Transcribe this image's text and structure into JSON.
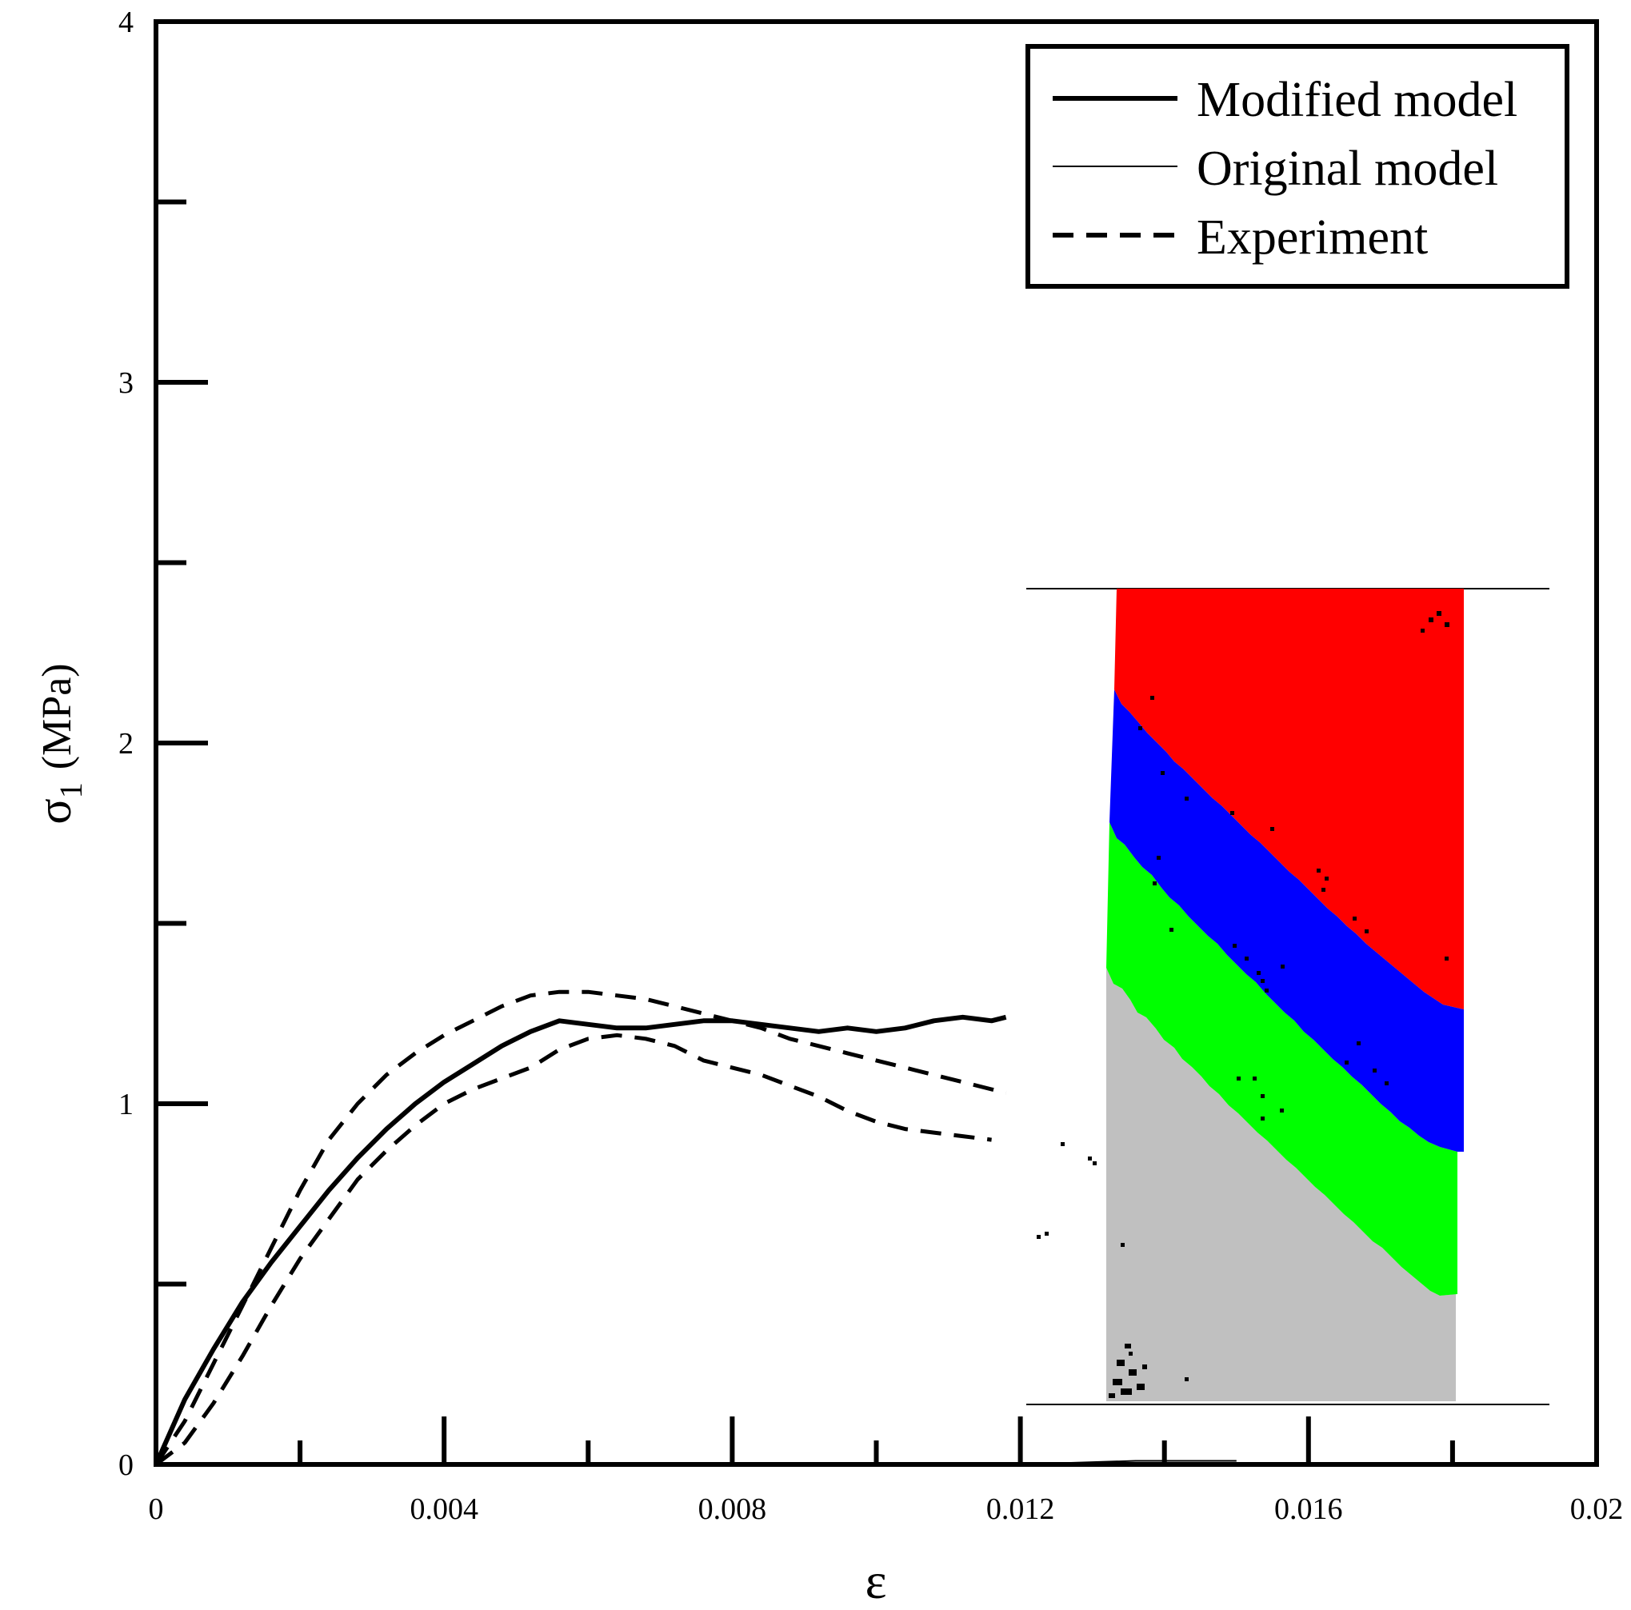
{
  "chart_data": {
    "type": "line",
    "title": "",
    "xlabel": "ε",
    "ylabel": "σ",
    "ylabel_subscript": "1",
    "ylabel_unit": "(MPa)",
    "xlim": [
      0,
      0.02
    ],
    "ylim": [
      0,
      4
    ],
    "x_ticks": [
      0,
      0.004,
      0.008,
      0.012,
      0.016,
      0.02
    ],
    "x_tick_labels": [
      "0",
      "0.004",
      "0.008",
      "0.012",
      "0.016",
      "0.02"
    ],
    "y_ticks": [
      0,
      1,
      2,
      3,
      4
    ],
    "y_tick_labels": [
      "0",
      "1",
      "2",
      "3",
      "4"
    ],
    "grid": false,
    "legend_position": "top-right",
    "series": [
      {
        "name": "Modified model",
        "style": "solid-thick",
        "points": [
          [
            0,
            0
          ],
          [
            0.0004,
            0.18
          ],
          [
            0.0008,
            0.32
          ],
          [
            0.0012,
            0.45
          ],
          [
            0.0016,
            0.56
          ],
          [
            0.002,
            0.66
          ],
          [
            0.0024,
            0.76
          ],
          [
            0.0028,
            0.85
          ],
          [
            0.0032,
            0.93
          ],
          [
            0.0036,
            1.0
          ],
          [
            0.004,
            1.06
          ],
          [
            0.0044,
            1.11
          ],
          [
            0.0048,
            1.16
          ],
          [
            0.0052,
            1.2
          ],
          [
            0.0056,
            1.23
          ],
          [
            0.006,
            1.22
          ],
          [
            0.0064,
            1.21
          ],
          [
            0.0068,
            1.21
          ],
          [
            0.0072,
            1.22
          ],
          [
            0.0076,
            1.23
          ],
          [
            0.008,
            1.23
          ],
          [
            0.0084,
            1.22
          ],
          [
            0.0088,
            1.21
          ],
          [
            0.0092,
            1.2
          ],
          [
            0.0096,
            1.21
          ],
          [
            0.01,
            1.2
          ],
          [
            0.0104,
            1.21
          ],
          [
            0.0108,
            1.23
          ],
          [
            0.0112,
            1.24
          ],
          [
            0.0116,
            1.23
          ],
          [
            0.0118,
            1.24
          ]
        ]
      },
      {
        "name": "Original model",
        "style": "solid-thin",
        "points": [
          [
            0.004,
            0
          ],
          [
            0.008,
            0
          ],
          [
            0.012,
            0
          ],
          [
            0.0136,
            0.01
          ],
          [
            0.015,
            0.01
          ]
        ]
      },
      {
        "name": "Experiment",
        "style": "dashed",
        "points": [
          [
            0,
            0
          ],
          [
            0.0004,
            0.12
          ],
          [
            0.0008,
            0.28
          ],
          [
            0.0012,
            0.44
          ],
          [
            0.0016,
            0.6
          ],
          [
            0.002,
            0.76
          ],
          [
            0.0024,
            0.9
          ],
          [
            0.0028,
            1.0
          ],
          [
            0.0032,
            1.08
          ],
          [
            0.0036,
            1.14
          ],
          [
            0.004,
            1.19
          ],
          [
            0.0044,
            1.23
          ],
          [
            0.0048,
            1.27
          ],
          [
            0.0052,
            1.3
          ],
          [
            0.0056,
            1.31
          ],
          [
            0.006,
            1.31
          ],
          [
            0.0064,
            1.3
          ],
          [
            0.0068,
            1.29
          ],
          [
            0.0072,
            1.27
          ],
          [
            0.0076,
            1.25
          ],
          [
            0.008,
            1.23
          ],
          [
            0.0084,
            1.21
          ],
          [
            0.0088,
            1.18
          ],
          [
            0.0092,
            1.16
          ],
          [
            0.0096,
            1.14
          ],
          [
            0.01,
            1.12
          ],
          [
            0.0104,
            1.1
          ],
          [
            0.0108,
            1.08
          ],
          [
            0.0112,
            1.06
          ],
          [
            0.0116,
            1.04
          ],
          [
            0.0118,
            1.03
          ]
        ]
      },
      {
        "name": "",
        "style": "dashed",
        "points": [
          [
            0,
            0
          ],
          [
            0.0004,
            0.06
          ],
          [
            0.0008,
            0.17
          ],
          [
            0.0012,
            0.3
          ],
          [
            0.0016,
            0.44
          ],
          [
            0.002,
            0.57
          ],
          [
            0.0024,
            0.68
          ],
          [
            0.0028,
            0.79
          ],
          [
            0.0032,
            0.87
          ],
          [
            0.0036,
            0.94
          ],
          [
            0.004,
            1.0
          ],
          [
            0.0044,
            1.04
          ],
          [
            0.0048,
            1.07
          ],
          [
            0.0052,
            1.1
          ],
          [
            0.0056,
            1.15
          ],
          [
            0.006,
            1.18
          ],
          [
            0.0064,
            1.19
          ],
          [
            0.0068,
            1.18
          ],
          [
            0.0072,
            1.16
          ],
          [
            0.0076,
            1.12
          ],
          [
            0.008,
            1.1
          ],
          [
            0.0084,
            1.08
          ],
          [
            0.0088,
            1.05
          ],
          [
            0.0092,
            1.02
          ],
          [
            0.0096,
            0.98
          ],
          [
            0.01,
            0.95
          ],
          [
            0.0104,
            0.93
          ],
          [
            0.0108,
            0.92
          ],
          [
            0.0112,
            0.91
          ],
          [
            0.0116,
            0.9
          ]
        ]
      }
    ],
    "inset": {
      "type": "specimen-damage-map",
      "region_colors": {
        "top": "#ff0000",
        "upper_middle": "#0000ff",
        "lower_middle": "#00ff00",
        "bottom": "#c0c0c0",
        "cracks": "#000000"
      }
    }
  }
}
